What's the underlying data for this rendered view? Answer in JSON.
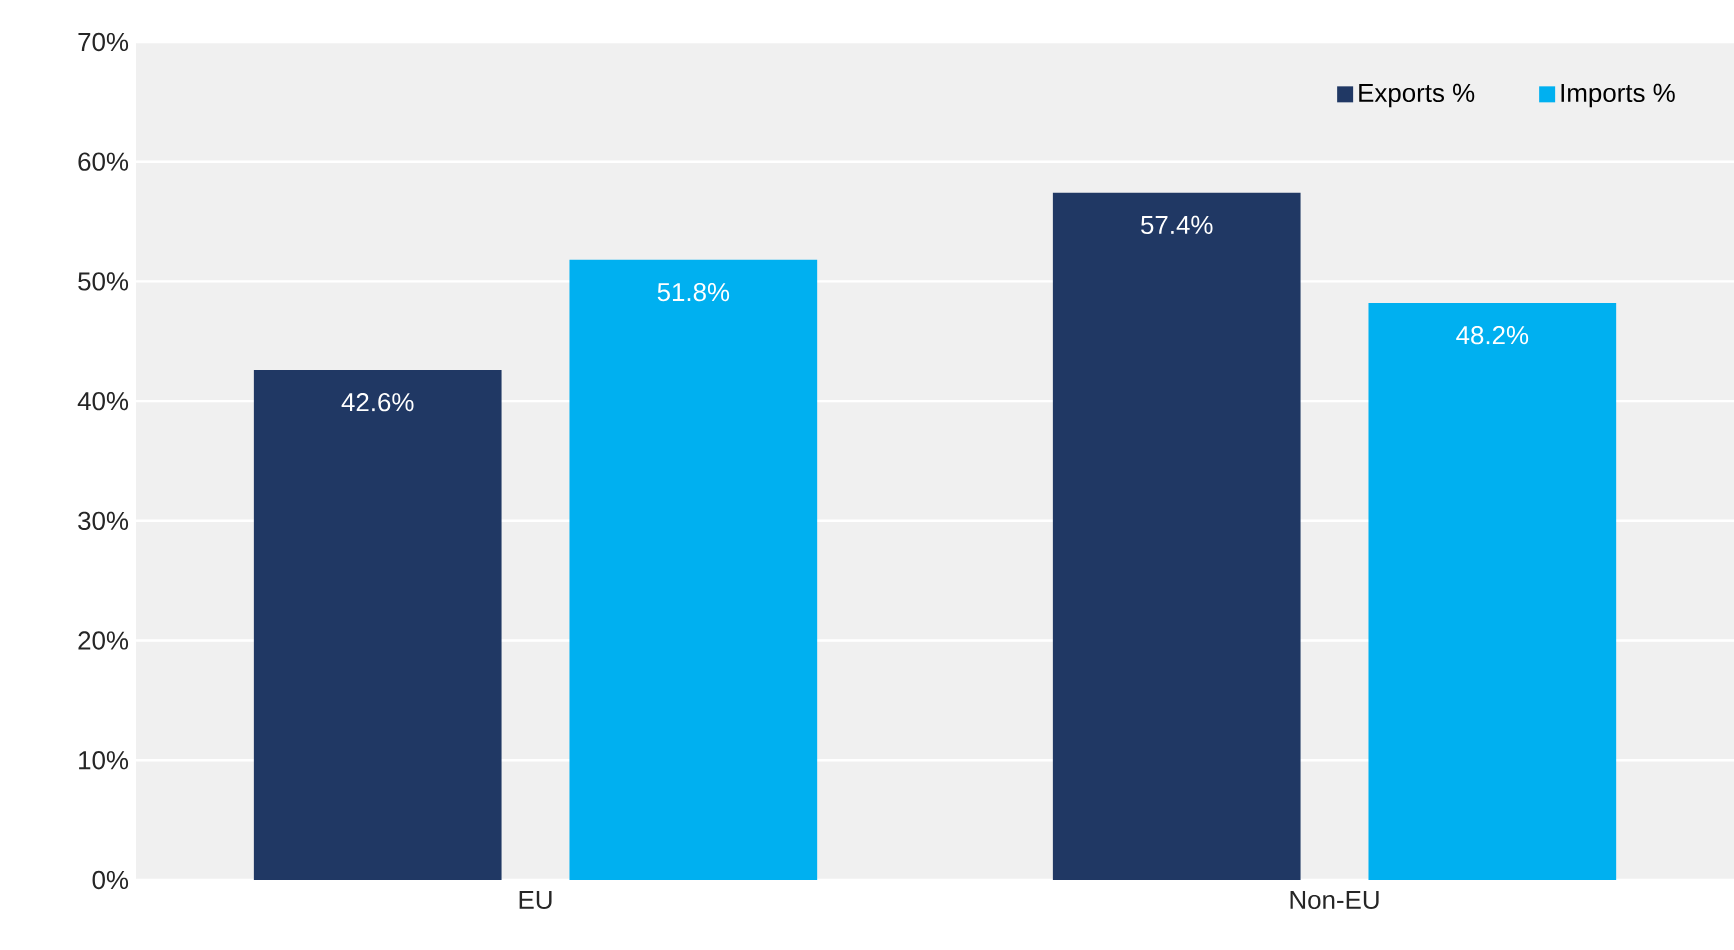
{
  "chart_data": {
    "type": "bar",
    "categories": [
      "EU",
      "Non-EU"
    ],
    "series": [
      {
        "name": "Exports %",
        "color": "#203864",
        "values": [
          42.6,
          57.4
        ],
        "value_labels": [
          "42.6%",
          "57.4%"
        ]
      },
      {
        "name": "Imports %",
        "color": "#00b0f0",
        "values": [
          51.8,
          48.2
        ],
        "value_labels": [
          "51.8%",
          "48.2%"
        ]
      }
    ],
    "ylim": [
      0,
      70
    ],
    "yticks": [
      {
        "value": 0,
        "label": "0%"
      },
      {
        "value": 10,
        "label": "10%"
      },
      {
        "value": 20,
        "label": "20%"
      },
      {
        "value": 30,
        "label": "30%"
      },
      {
        "value": 40,
        "label": "40%"
      },
      {
        "value": 50,
        "label": "50%"
      },
      {
        "value": 60,
        "label": "60%"
      },
      {
        "value": 70,
        "label": "70%"
      }
    ],
    "grid": "y",
    "legend": "top right"
  }
}
